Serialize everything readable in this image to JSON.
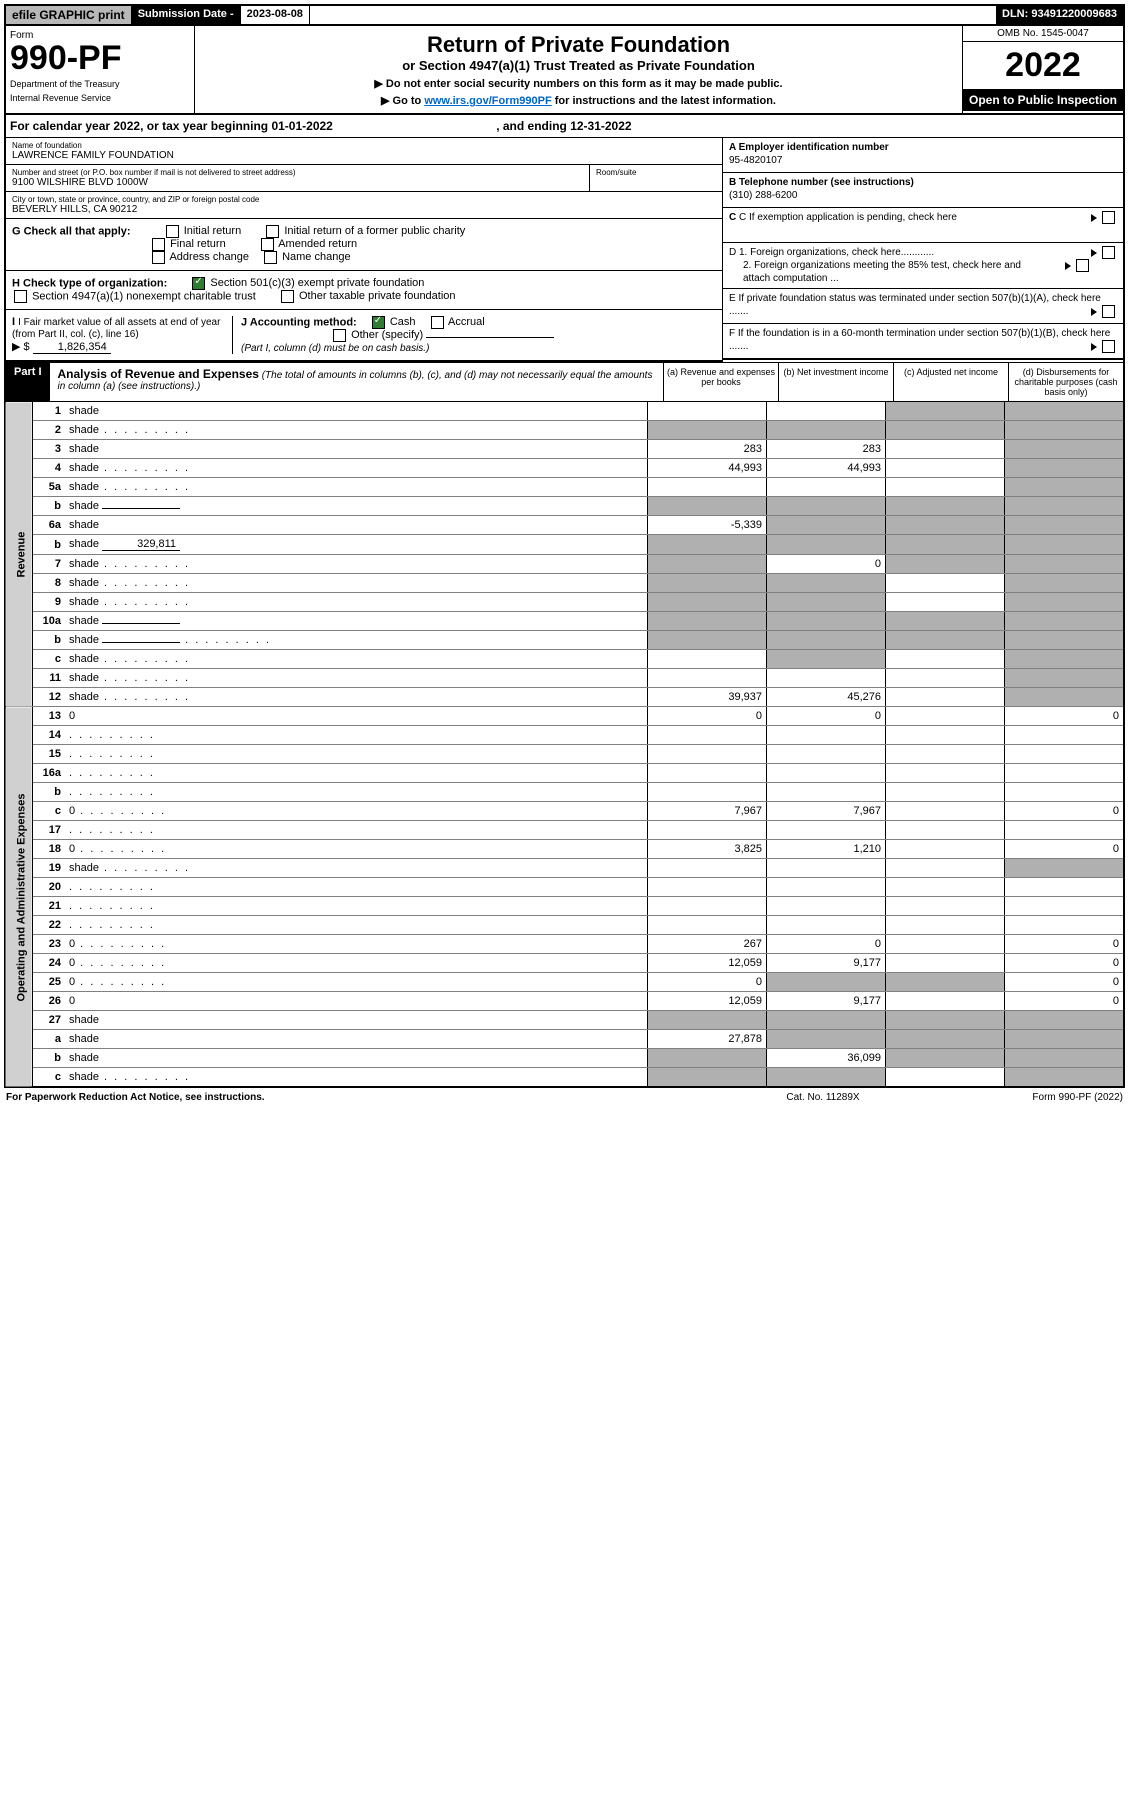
{
  "topbar": {
    "efile": "efile GRAPHIC print",
    "subdate_label": "Submission Date - ",
    "subdate_value": "2023-08-08",
    "dln": "DLN: 93491220009683"
  },
  "header": {
    "form_label": "Form",
    "form_number": "990-PF",
    "dept1": "Department of the Treasury",
    "dept2": "Internal Revenue Service",
    "title": "Return of Private Foundation",
    "subtitle": "or Section 4947(a)(1) Trust Treated as Private Foundation",
    "instr1": "▶ Do not enter social security numbers on this form as it may be made public.",
    "instr2_pre": "▶ Go to ",
    "instr2_link": "www.irs.gov/Form990PF",
    "instr2_post": " for instructions and the latest information.",
    "omb": "OMB No. 1545-0047",
    "year": "2022",
    "open_public": "Open to Public Inspection"
  },
  "calyear": {
    "text_pre": "For calendar year 2022, or tax year beginning ",
    "begin": "01-01-2022",
    "text_mid": " , and ending ",
    "end": "12-31-2022"
  },
  "entity": {
    "name_label": "Name of foundation",
    "name": "LAWRENCE FAMILY FOUNDATION",
    "addr_label": "Number and street (or P.O. box number if mail is not delivered to street address)",
    "addr": "9100 WILSHIRE BLVD 1000W",
    "room_label": "Room/suite",
    "city_label": "City or town, state or province, country, and ZIP or foreign postal code",
    "city": "BEVERLY HILLS, CA  90212",
    "A_label": "A Employer identification number",
    "A_value": "95-4820107",
    "B_label": "B Telephone number (see instructions)",
    "B_value": "(310) 288-6200",
    "C_label": "C If exemption application is pending, check here",
    "D1": "D 1. Foreign organizations, check here............",
    "D2": "2. Foreign organizations meeting the 85% test, check here and attach computation ...",
    "E": "E  If private foundation status was terminated under section 507(b)(1)(A), check here .......",
    "F": "F  If the foundation is in a 60-month termination under section 507(b)(1)(B), check here .......",
    "G_label": "G Check all that apply:",
    "G_initial": "Initial return",
    "G_initial_former": "Initial return of a former public charity",
    "G_final": "Final return",
    "G_amended": "Amended return",
    "G_addr": "Address change",
    "G_name": "Name change",
    "H_label": "H Check type of organization:",
    "H_501c3": "Section 501(c)(3) exempt private foundation",
    "H_4947": "Section 4947(a)(1) nonexempt charitable trust",
    "H_other_tax": "Other taxable private foundation",
    "I_label": "I Fair market value of all assets at end of year (from Part II, col. (c), line 16)",
    "I_prefix": "▶ $",
    "I_value": "1,826,354",
    "J_label": "J Accounting method:",
    "J_cash": "Cash",
    "J_accrual": "Accrual",
    "J_other": "Other (specify)",
    "J_note": "(Part I, column (d) must be on cash basis.)"
  },
  "part1": {
    "label": "Part I",
    "title": "Analysis of Revenue and Expenses",
    "title_note": " (The total of amounts in columns (b), (c), and (d) may not necessarily equal the amounts in column (a) (see instructions).)",
    "col_a": "(a)  Revenue and expenses per books",
    "col_b": "(b)  Net investment income",
    "col_c": "(c)  Adjusted net income",
    "col_d": "(d)  Disbursements for charitable purposes (cash basis only)"
  },
  "sides": {
    "revenue": "Revenue",
    "expenses": "Operating and Administrative Expenses"
  },
  "lines": [
    {
      "n": "1",
      "d": "shade",
      "a": "",
      "b": "",
      "c": "shade"
    },
    {
      "n": "2",
      "d": "shade",
      "dots": true,
      "a": "shade",
      "b": "shade",
      "c": "shade"
    },
    {
      "n": "3",
      "d": "shade",
      "a": "283",
      "b": "283",
      "c": ""
    },
    {
      "n": "4",
      "d": "shade",
      "dots": true,
      "a": "44,993",
      "b": "44,993",
      "c": ""
    },
    {
      "n": "5a",
      "d": "shade",
      "dots": true,
      "a": "",
      "b": "",
      "c": ""
    },
    {
      "n": "b",
      "d": "shade",
      "inline": "",
      "a": "shade",
      "b": "shade",
      "c": "shade"
    },
    {
      "n": "6a",
      "d": "shade",
      "a": "-5,339",
      "b": "shade",
      "c": "shade"
    },
    {
      "n": "b",
      "d": "shade",
      "inline": "329,811",
      "a": "shade",
      "b": "shade",
      "c": "shade"
    },
    {
      "n": "7",
      "d": "shade",
      "dots": true,
      "a": "shade",
      "b": "0",
      "c": "shade"
    },
    {
      "n": "8",
      "d": "shade",
      "dots": true,
      "a": "shade",
      "b": "shade",
      "c": ""
    },
    {
      "n": "9",
      "d": "shade",
      "dots": true,
      "a": "shade",
      "b": "shade",
      "c": ""
    },
    {
      "n": "10a",
      "d": "shade",
      "inline": "",
      "a": "shade",
      "b": "shade",
      "c": "shade"
    },
    {
      "n": "b",
      "d": "shade",
      "dots": true,
      "inline": "",
      "a": "shade",
      "b": "shade",
      "c": "shade"
    },
    {
      "n": "c",
      "d": "shade",
      "dots": true,
      "a": "",
      "b": "shade",
      "c": ""
    },
    {
      "n": "11",
      "d": "shade",
      "dots": true,
      "a": "",
      "b": "",
      "c": ""
    },
    {
      "n": "12",
      "d": "shade",
      "dots": true,
      "a": "39,937",
      "b": "45,276",
      "c": ""
    },
    {
      "n": "13",
      "d": "0",
      "a": "0",
      "b": "0",
      "c": ""
    },
    {
      "n": "14",
      "d": "",
      "dots": true,
      "a": "",
      "b": "",
      "c": ""
    },
    {
      "n": "15",
      "d": "",
      "dots": true,
      "a": "",
      "b": "",
      "c": ""
    },
    {
      "n": "16a",
      "d": "",
      "dots": true,
      "a": "",
      "b": "",
      "c": ""
    },
    {
      "n": "b",
      "d": "",
      "dots": true,
      "a": "",
      "b": "",
      "c": ""
    },
    {
      "n": "c",
      "d": "0",
      "dots": true,
      "a": "7,967",
      "b": "7,967",
      "c": ""
    },
    {
      "n": "17",
      "d": "",
      "dots": true,
      "a": "",
      "b": "",
      "c": ""
    },
    {
      "n": "18",
      "d": "0",
      "dots": true,
      "a": "3,825",
      "b": "1,210",
      "c": ""
    },
    {
      "n": "19",
      "d": "shade",
      "dots": true,
      "a": "",
      "b": "",
      "c": ""
    },
    {
      "n": "20",
      "d": "",
      "dots": true,
      "a": "",
      "b": "",
      "c": ""
    },
    {
      "n": "21",
      "d": "",
      "dots": true,
      "a": "",
      "b": "",
      "c": ""
    },
    {
      "n": "22",
      "d": "",
      "dots": true,
      "a": "",
      "b": "",
      "c": ""
    },
    {
      "n": "23",
      "d": "0",
      "dots": true,
      "a": "267",
      "b": "0",
      "c": ""
    },
    {
      "n": "24",
      "d": "0",
      "dots": true,
      "a": "12,059",
      "b": "9,177",
      "c": ""
    },
    {
      "n": "25",
      "d": "0",
      "dots": true,
      "a": "0",
      "b": "shade",
      "c": "shade"
    },
    {
      "n": "26",
      "d": "0",
      "a": "12,059",
      "b": "9,177",
      "c": ""
    },
    {
      "n": "27",
      "d": "shade",
      "a": "shade",
      "b": "shade",
      "c": "shade"
    },
    {
      "n": "a",
      "d": "shade",
      "a": "27,878",
      "b": "shade",
      "c": "shade"
    },
    {
      "n": "b",
      "d": "shade",
      "a": "shade",
      "b": "36,099",
      "c": "shade"
    },
    {
      "n": "c",
      "d": "shade",
      "dots": true,
      "a": "shade",
      "b": "shade",
      "c": ""
    }
  ],
  "footer": {
    "left": "For Paperwork Reduction Act Notice, see instructions.",
    "mid": "Cat. No. 11289X",
    "right": "Form 990-PF (2022)"
  }
}
